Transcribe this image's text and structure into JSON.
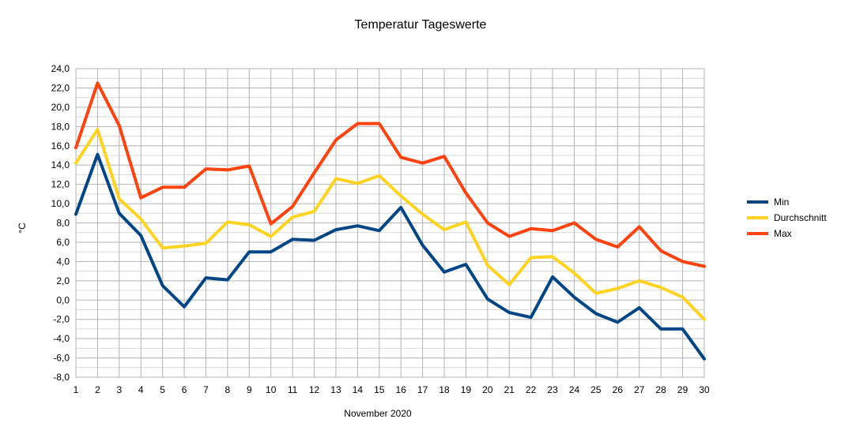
{
  "chart_data": {
    "type": "line",
    "title": "Temperatur Tageswerte",
    "xlabel": "November 2020",
    "ylabel": "°C",
    "x": [
      "1",
      "2",
      "3",
      "4",
      "5",
      "6",
      "7",
      "8",
      "9",
      "10",
      "11",
      "12",
      "13",
      "14",
      "15",
      "16",
      "17",
      "18",
      "19",
      "20",
      "21",
      "22",
      "23",
      "24",
      "25",
      "26",
      "27",
      "28",
      "29",
      "30"
    ],
    "ylim": [
      -8,
      24
    ],
    "y_ticks": [
      "24,0",
      "22,0",
      "20,0",
      "18,0",
      "16,0",
      "14,0",
      "12,0",
      "10,0",
      "8,0",
      "6,0",
      "4,0",
      "2,0",
      "0,0",
      "-2,0",
      "-4,0",
      "-6,0",
      "-8,0"
    ],
    "grid": true,
    "legend_position": "right",
    "series": [
      {
        "name": "Min",
        "color": "#004586",
        "values": [
          8.9,
          15.1,
          9.0,
          6.7,
          1.5,
          -0.7,
          2.3,
          2.1,
          5.0,
          5.0,
          6.3,
          6.2,
          7.3,
          7.7,
          7.2,
          9.6,
          5.7,
          2.9,
          3.7,
          0.1,
          -1.3,
          -1.8,
          2.4,
          0.3,
          -1.4,
          -2.3,
          -0.8,
          -3.0,
          -3.0,
          -6.1
        ]
      },
      {
        "name": "Durchschnitt",
        "color": "#ffd320",
        "values": [
          14.2,
          17.7,
          10.5,
          8.4,
          5.4,
          5.6,
          5.9,
          8.1,
          7.8,
          6.6,
          8.6,
          9.2,
          12.6,
          12.1,
          12.9,
          10.8,
          8.9,
          7.3,
          8.1,
          3.6,
          1.6,
          4.4,
          4.5,
          2.8,
          0.7,
          1.2,
          2.0,
          1.3,
          0.3,
          -2.0
        ]
      },
      {
        "name": "Max",
        "color": "#ff420e",
        "values": [
          15.8,
          22.5,
          18.1,
          10.6,
          11.7,
          11.7,
          13.6,
          13.5,
          13.9,
          7.9,
          9.7,
          13.2,
          16.6,
          18.3,
          18.3,
          14.8,
          14.2,
          14.9,
          11.1,
          8.0,
          6.6,
          7.4,
          7.2,
          8.0,
          6.3,
          5.5,
          7.6,
          5.1,
          4.0,
          3.5
        ]
      }
    ]
  }
}
